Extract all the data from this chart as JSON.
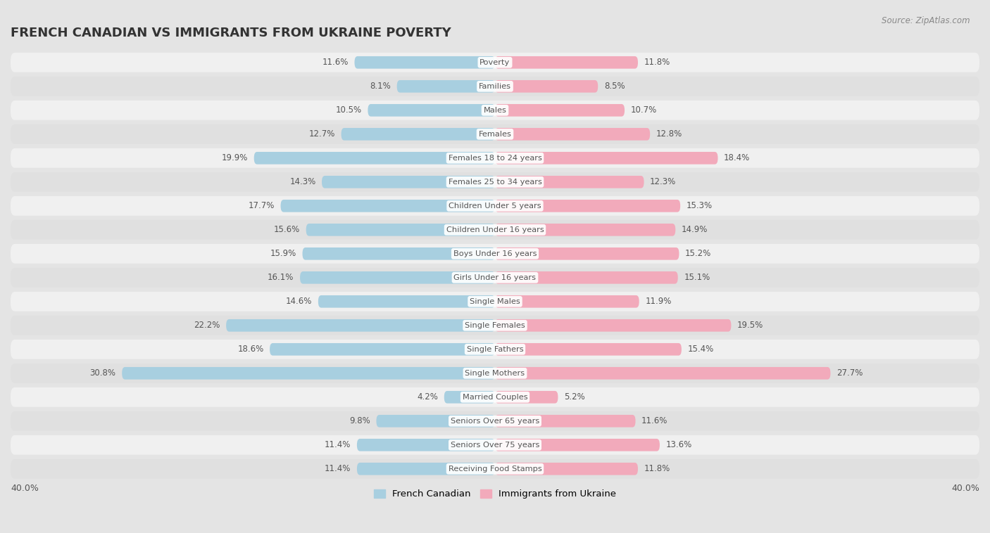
{
  "title": "FRENCH CANADIAN VS IMMIGRANTS FROM UKRAINE POVERTY",
  "source": "Source: ZipAtlas.com",
  "categories": [
    "Poverty",
    "Families",
    "Males",
    "Females",
    "Females 18 to 24 years",
    "Females 25 to 34 years",
    "Children Under 5 years",
    "Children Under 16 years",
    "Boys Under 16 years",
    "Girls Under 16 years",
    "Single Males",
    "Single Females",
    "Single Fathers",
    "Single Mothers",
    "Married Couples",
    "Seniors Over 65 years",
    "Seniors Over 75 years",
    "Receiving Food Stamps"
  ],
  "french_canadian": [
    11.6,
    8.1,
    10.5,
    12.7,
    19.9,
    14.3,
    17.7,
    15.6,
    15.9,
    16.1,
    14.6,
    22.2,
    18.6,
    30.8,
    4.2,
    9.8,
    11.4,
    11.4
  ],
  "immigrants_ukraine": [
    11.8,
    8.5,
    10.7,
    12.8,
    18.4,
    12.3,
    15.3,
    14.9,
    15.2,
    15.1,
    11.9,
    19.5,
    15.4,
    27.7,
    5.2,
    11.6,
    13.6,
    11.8
  ],
  "color_french": "#a8cfe0",
  "color_ukraine": "#f2aabb",
  "background_outer": "#e4e4e4",
  "background_row_light": "#f0f0f0",
  "background_row_dark": "#e0e0e0",
  "axis_max": 40.0,
  "legend_label_french": "French Canadian",
  "legend_label_ukraine": "Immigrants from Ukraine"
}
